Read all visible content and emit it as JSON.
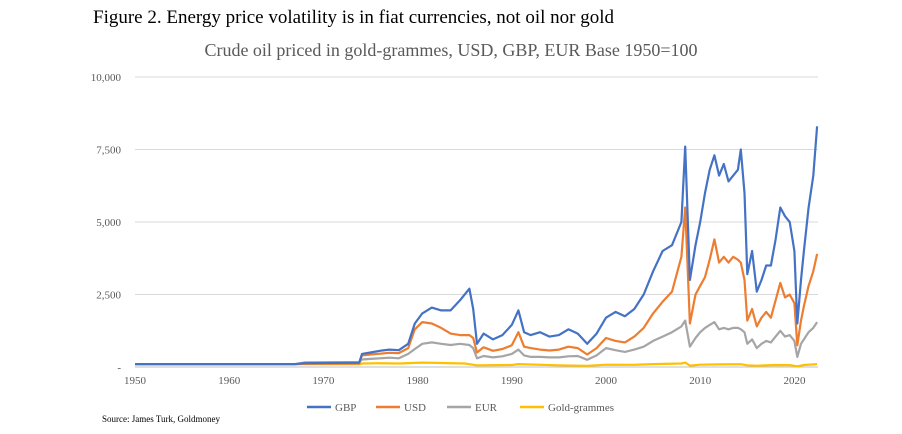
{
  "figure_title": "Figure 2. Energy price volatility is in fiat currencies, not oil nor gold",
  "source": "Source: James Turk, Goldmoney",
  "chart_data": {
    "type": "line",
    "title": "Crude oil priced in gold-grammes, USD, GBP, EUR Base 1950=100",
    "xlabel": "",
    "ylabel": "",
    "xlim": [
      1950,
      2022.5
    ],
    "ylim": [
      0,
      10000
    ],
    "y_ticks": [
      0,
      2500,
      5000,
      7500,
      10000
    ],
    "y_tick_labels": [
      "-",
      "2,500",
      "5,000",
      "7,500",
      "10,000"
    ],
    "x_ticks": [
      1950,
      1960,
      1970,
      1980,
      1990,
      2000,
      2010,
      2020
    ],
    "x_tick_labels": [
      "1950",
      "1960",
      "1970",
      "1980",
      "1990",
      "2000",
      "2010",
      "2020"
    ],
    "grid": "horizontal",
    "legend_position": "bottom",
    "series": [
      {
        "name": "GBP",
        "color": "#4472C4",
        "points": [
          [
            1950,
            100
          ],
          [
            1967,
            100
          ],
          [
            1967.9,
            130
          ],
          [
            1973.8,
            150
          ],
          [
            1974.1,
            450
          ],
          [
            1975,
            500
          ],
          [
            1976,
            560
          ],
          [
            1977,
            600
          ],
          [
            1978,
            580
          ],
          [
            1979,
            800
          ],
          [
            1979.7,
            1500
          ],
          [
            1980.5,
            1850
          ],
          [
            1981.5,
            2050
          ],
          [
            1982.5,
            1950
          ],
          [
            1983.5,
            1950
          ],
          [
            1984.5,
            2300
          ],
          [
            1985.5,
            2700
          ],
          [
            1985.9,
            2000
          ],
          [
            1986.3,
            800
          ],
          [
            1987,
            1150
          ],
          [
            1988,
            950
          ],
          [
            1989,
            1100
          ],
          [
            1990,
            1450
          ],
          [
            1990.7,
            1950
          ],
          [
            1991.3,
            1200
          ],
          [
            1992,
            1100
          ],
          [
            1993,
            1200
          ],
          [
            1994,
            1050
          ],
          [
            1995,
            1100
          ],
          [
            1996,
            1300
          ],
          [
            1997,
            1150
          ],
          [
            1998,
            800
          ],
          [
            1999,
            1150
          ],
          [
            2000,
            1700
          ],
          [
            2001,
            1900
          ],
          [
            2002,
            1750
          ],
          [
            2003,
            2000
          ],
          [
            2004,
            2500
          ],
          [
            2005,
            3300
          ],
          [
            2006,
            4000
          ],
          [
            2007,
            4200
          ],
          [
            2008,
            5000
          ],
          [
            2008.4,
            7600
          ],
          [
            2008.9,
            3000
          ],
          [
            2009.5,
            4200
          ],
          [
            2010,
            5000
          ],
          [
            2010.5,
            6000
          ],
          [
            2011,
            6800
          ],
          [
            2011.5,
            7300
          ],
          [
            2012,
            6600
          ],
          [
            2012.5,
            7000
          ],
          [
            2013,
            6400
          ],
          [
            2013.5,
            6600
          ],
          [
            2014,
            6800
          ],
          [
            2014.3,
            7500
          ],
          [
            2014.7,
            6000
          ],
          [
            2015,
            3200
          ],
          [
            2015.5,
            4000
          ],
          [
            2016,
            2600
          ],
          [
            2016.5,
            3000
          ],
          [
            2017,
            3500
          ],
          [
            2017.5,
            3500
          ],
          [
            2018,
            4400
          ],
          [
            2018.5,
            5500
          ],
          [
            2019,
            5200
          ],
          [
            2019.5,
            5000
          ],
          [
            2020,
            4000
          ],
          [
            2020.3,
            1500
          ],
          [
            2020.7,
            3000
          ],
          [
            2021,
            4000
          ],
          [
            2021.5,
            5500
          ],
          [
            2022,
            6600
          ],
          [
            2022.4,
            8300
          ]
        ]
      },
      {
        "name": "USD",
        "color": "#ED7D31",
        "points": [
          [
            1950,
            100
          ],
          [
            1967,
            100
          ],
          [
            1968,
            110
          ],
          [
            1973.8,
            120
          ],
          [
            1974.1,
            400
          ],
          [
            1975,
            430
          ],
          [
            1976,
            460
          ],
          [
            1977,
            490
          ],
          [
            1978,
            480
          ],
          [
            1979,
            650
          ],
          [
            1979.7,
            1300
          ],
          [
            1980.5,
            1550
          ],
          [
            1981.5,
            1500
          ],
          [
            1982.5,
            1350
          ],
          [
            1983.5,
            1150
          ],
          [
            1984.5,
            1100
          ],
          [
            1985.5,
            1100
          ],
          [
            1985.9,
            1000
          ],
          [
            1986.3,
            500
          ],
          [
            1987,
            680
          ],
          [
            1988,
            560
          ],
          [
            1989,
            620
          ],
          [
            1990,
            750
          ],
          [
            1990.7,
            1200
          ],
          [
            1991.3,
            700
          ],
          [
            1992,
            650
          ],
          [
            1993,
            600
          ],
          [
            1994,
            570
          ],
          [
            1995,
            600
          ],
          [
            1996,
            700
          ],
          [
            1997,
            650
          ],
          [
            1998,
            430
          ],
          [
            1999,
            650
          ],
          [
            2000,
            1000
          ],
          [
            2001,
            900
          ],
          [
            2002,
            850
          ],
          [
            2003,
            1050
          ],
          [
            2004,
            1350
          ],
          [
            2005,
            1850
          ],
          [
            2006,
            2250
          ],
          [
            2007,
            2600
          ],
          [
            2008,
            3800
          ],
          [
            2008.4,
            5500
          ],
          [
            2008.9,
            1500
          ],
          [
            2009.5,
            2500
          ],
          [
            2010,
            2800
          ],
          [
            2010.5,
            3100
          ],
          [
            2011,
            3700
          ],
          [
            2011.5,
            4400
          ],
          [
            2012,
            3600
          ],
          [
            2012.5,
            3800
          ],
          [
            2013,
            3600
          ],
          [
            2013.5,
            3800
          ],
          [
            2014,
            3700
          ],
          [
            2014.3,
            3600
          ],
          [
            2014.7,
            3000
          ],
          [
            2015,
            1600
          ],
          [
            2015.5,
            2000
          ],
          [
            2016,
            1400
          ],
          [
            2016.5,
            1700
          ],
          [
            2017,
            1900
          ],
          [
            2017.5,
            1700
          ],
          [
            2018,
            2300
          ],
          [
            2018.5,
            2900
          ],
          [
            2019,
            2400
          ],
          [
            2019.5,
            2500
          ],
          [
            2020,
            2200
          ],
          [
            2020.3,
            750
          ],
          [
            2020.7,
            1600
          ],
          [
            2021,
            2100
          ],
          [
            2021.5,
            2800
          ],
          [
            2022,
            3300
          ],
          [
            2022.4,
            3900
          ]
        ]
      },
      {
        "name": "EUR",
        "color": "#A5A5A5",
        "points": [
          [
            1950,
            100
          ],
          [
            1967,
            100
          ],
          [
            1968,
            160
          ],
          [
            1973.8,
            170
          ],
          [
            1974.1,
            260
          ],
          [
            1975,
            280
          ],
          [
            1976,
            300
          ],
          [
            1977,
            320
          ],
          [
            1978,
            300
          ],
          [
            1979,
            450
          ],
          [
            1979.7,
            620
          ],
          [
            1980.5,
            800
          ],
          [
            1981.5,
            850
          ],
          [
            1982.5,
            800
          ],
          [
            1983.5,
            760
          ],
          [
            1984.5,
            800
          ],
          [
            1985.5,
            760
          ],
          [
            1985.9,
            650
          ],
          [
            1986.3,
            300
          ],
          [
            1987,
            380
          ],
          [
            1988,
            330
          ],
          [
            1989,
            370
          ],
          [
            1990,
            450
          ],
          [
            1990.7,
            600
          ],
          [
            1991.3,
            400
          ],
          [
            1992,
            350
          ],
          [
            1993,
            350
          ],
          [
            1994,
            330
          ],
          [
            1995,
            330
          ],
          [
            1996,
            370
          ],
          [
            1997,
            380
          ],
          [
            1998,
            250
          ],
          [
            1999,
            400
          ],
          [
            2000,
            650
          ],
          [
            2001,
            580
          ],
          [
            2002,
            520
          ],
          [
            2003,
            600
          ],
          [
            2004,
            700
          ],
          [
            2005,
            900
          ],
          [
            2006,
            1050
          ],
          [
            2007,
            1200
          ],
          [
            2008,
            1400
          ],
          [
            2008.4,
            1600
          ],
          [
            2008.9,
            700
          ],
          [
            2009.5,
            1000
          ],
          [
            2010,
            1200
          ],
          [
            2010.5,
            1350
          ],
          [
            2011,
            1450
          ],
          [
            2011.5,
            1550
          ],
          [
            2012,
            1300
          ],
          [
            2012.5,
            1350
          ],
          [
            2013,
            1300
          ],
          [
            2013.5,
            1350
          ],
          [
            2014,
            1350
          ],
          [
            2014.3,
            1300
          ],
          [
            2014.7,
            1200
          ],
          [
            2015,
            800
          ],
          [
            2015.5,
            950
          ],
          [
            2016,
            650
          ],
          [
            2016.5,
            800
          ],
          [
            2017,
            900
          ],
          [
            2017.5,
            850
          ],
          [
            2018,
            1050
          ],
          [
            2018.5,
            1250
          ],
          [
            2019,
            1050
          ],
          [
            2019.5,
            1100
          ],
          [
            2020,
            900
          ],
          [
            2020.3,
            350
          ],
          [
            2020.7,
            800
          ],
          [
            2021,
            950
          ],
          [
            2021.5,
            1200
          ],
          [
            2022,
            1350
          ],
          [
            2022.4,
            1550
          ]
        ]
      },
      {
        "name": "Gold-grammes",
        "color": "#FFC000",
        "points": [
          [
            1950,
            100
          ],
          [
            1965,
            100
          ],
          [
            1970,
            95
          ],
          [
            1973.8,
            95
          ],
          [
            1974.1,
            120
          ],
          [
            1976,
            130
          ],
          [
            1978,
            120
          ],
          [
            1979.7,
            140
          ],
          [
            1980.5,
            150
          ],
          [
            1982,
            140
          ],
          [
            1985,
            120
          ],
          [
            1986.3,
            60
          ],
          [
            1990,
            70
          ],
          [
            1990.7,
            100
          ],
          [
            1995,
            60
          ],
          [
            1998,
            40
          ],
          [
            2000,
            80
          ],
          [
            2003,
            75
          ],
          [
            2005,
            100
          ],
          [
            2008,
            120
          ],
          [
            2008.4,
            150
          ],
          [
            2008.9,
            50
          ],
          [
            2010,
            80
          ],
          [
            2012,
            90
          ],
          [
            2014.3,
            95
          ],
          [
            2015,
            60
          ],
          [
            2016,
            45
          ],
          [
            2018,
            70
          ],
          [
            2019.5,
            65
          ],
          [
            2020.3,
            25
          ],
          [
            2021,
            70
          ],
          [
            2022.4,
            100
          ]
        ]
      }
    ]
  }
}
